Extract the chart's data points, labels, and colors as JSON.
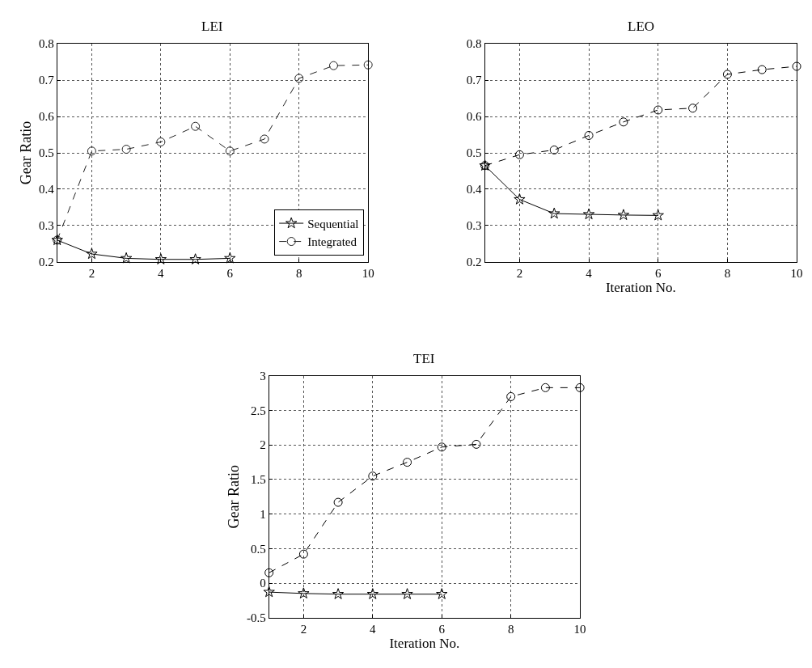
{
  "chart_data": [
    {
      "type": "line",
      "title": "LEI",
      "ylabel": "Gear Ratio",
      "x": [
        1,
        2,
        3,
        4,
        5,
        6,
        7,
        8,
        9,
        10
      ],
      "series": [
        {
          "name": "Sequential",
          "color": "#000000",
          "marker": "star",
          "line_style": "solid",
          "x": [
            1,
            2,
            3,
            4,
            5,
            6
          ],
          "values": [
            0.26,
            0.222,
            0.21,
            0.207,
            0.207,
            0.21
          ]
        },
        {
          "name": "Integrated",
          "color": "#222222",
          "marker": "circle",
          "line_style": "dashed",
          "values": [
            0.26,
            0.505,
            0.51,
            0.53,
            0.573,
            0.505,
            0.538,
            0.705,
            0.74,
            0.742
          ]
        }
      ],
      "xlim": [
        1,
        10
      ],
      "xticks": [
        2,
        4,
        6,
        8,
        10
      ],
      "ylim": [
        0.2,
        0.8
      ],
      "yticks": [
        0.2,
        0.3,
        0.4,
        0.5,
        0.6,
        0.7,
        0.8
      ],
      "grid": true,
      "legend": "bottom right"
    },
    {
      "type": "line",
      "title": "LEO",
      "xlabel": "Iteration No.",
      "x": [
        1,
        2,
        3,
        4,
        5,
        6,
        7,
        8,
        9,
        10
      ],
      "series": [
        {
          "color": "#000000",
          "marker": "star",
          "line_style": "solid",
          "x": [
            1,
            2,
            3,
            4,
            5,
            6
          ],
          "values": [
            0.465,
            0.372,
            0.333,
            0.331,
            0.329,
            0.328
          ]
        },
        {
          "color": "#000000",
          "marker": "circle",
          "line_style": "dashed",
          "values": [
            0.465,
            0.495,
            0.508,
            0.548,
            0.585,
            0.618,
            0.623,
            0.716,
            0.729,
            0.738
          ]
        }
      ],
      "xlim": [
        1,
        10
      ],
      "xticks": [
        2,
        4,
        6,
        8,
        10
      ],
      "ylim": [
        0.2,
        0.8
      ],
      "yticks": [
        0.2,
        0.3,
        0.4,
        0.5,
        0.6,
        0.7,
        0.8
      ],
      "grid": true
    },
    {
      "type": "line",
      "title": "TEI",
      "xlabel": "Iteration No.",
      "ylabel": "Gear Ratio",
      "x": [
        1,
        2,
        3,
        4,
        5,
        6,
        7,
        8,
        9,
        10
      ],
      "series": [
        {
          "color": "#000000",
          "marker": "star",
          "line_style": "solid",
          "x": [
            1,
            2,
            3,
            4,
            5,
            6
          ],
          "values": [
            -0.13,
            -0.15,
            -0.16,
            -0.16,
            -0.16,
            -0.16
          ]
        },
        {
          "color": "#000000",
          "marker": "circle",
          "line_style": "dashed",
          "values": [
            0.15,
            0.42,
            1.17,
            1.55,
            1.75,
            1.97,
            2.01,
            2.7,
            2.83,
            2.83
          ]
        }
      ],
      "xlim": [
        1,
        10
      ],
      "xticks": [
        2,
        4,
        6,
        8,
        10
      ],
      "ylim": [
        -0.5,
        3
      ],
      "yticks": [
        -0.5,
        0,
        0.5,
        1,
        1.5,
        2,
        2.5,
        3
      ],
      "grid": true
    }
  ]
}
